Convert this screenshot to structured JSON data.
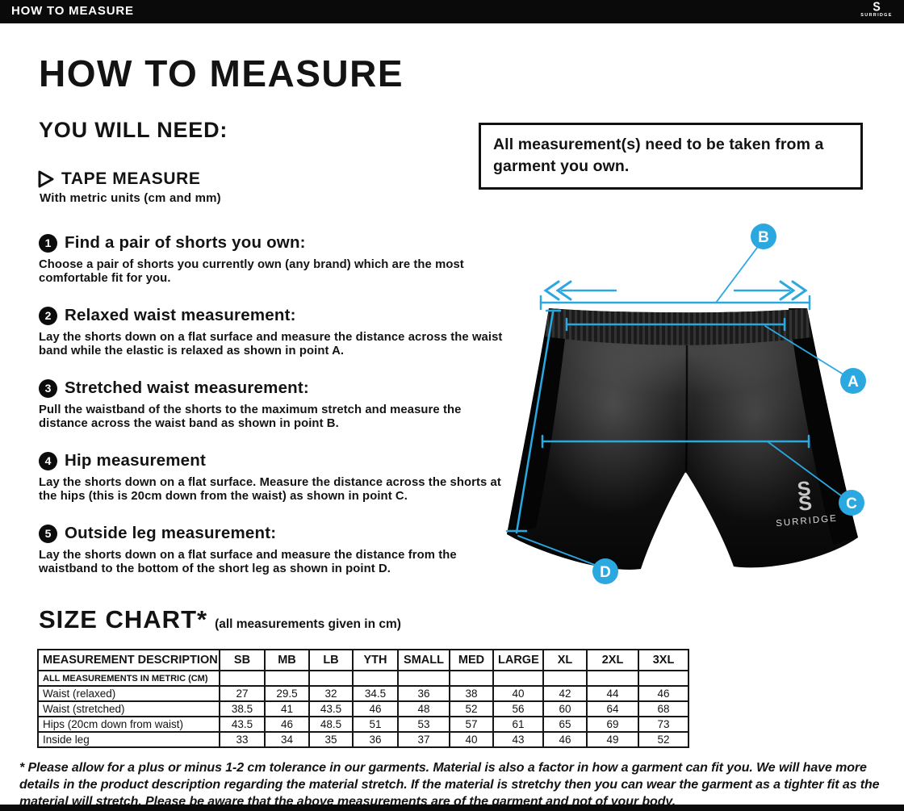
{
  "topbar": {
    "title": "HOW TO MEASURE",
    "brand_mark": "S",
    "brand": "SURRIDGE"
  },
  "intro": {
    "title": "HOW TO MEASURE",
    "you_will_need": "YOU WILL NEED:",
    "tool_name": "TAPE MEASURE",
    "tool_detail": "With metric units (cm and mm)",
    "notice": "All measurement(s) need to be taken from a garment you own."
  },
  "steps": [
    {
      "num": "1",
      "title": "Find a pair of shorts you own:",
      "body": "Choose a pair of shorts you currently own (any brand) which are the most comfortable fit for you."
    },
    {
      "num": "2",
      "title": "Relaxed waist measurement:",
      "body": "Lay the shorts down on a flat surface and measure the distance across the waist band while the elastic is relaxed as shown in point A."
    },
    {
      "num": "3",
      "title": "Stretched waist measurement:",
      "body": "Pull the waistband of the shorts to the maximum stretch and measure the distance across the waist band as shown in point B."
    },
    {
      "num": "4",
      "title": "Hip measurement",
      "body": "Lay the shorts down on a flat surface. Measure the distance across the shorts at the hips (this is 20cm down from the waist)  as shown in point C."
    },
    {
      "num": "5",
      "title": "Outside leg measurement:",
      "body": "Lay the shorts down on a flat surface and measure the distance from the waistband to the bottom of the short leg as shown in point D."
    }
  ],
  "diagram": {
    "point_a": "A",
    "point_b": "B",
    "point_c": "C",
    "point_d": "D",
    "garment_brand_mark": "S",
    "garment_brand": "SURRIDGE",
    "accent_color": "#2ca8e0"
  },
  "size_chart": {
    "title": "SIZE CHART*",
    "subtitle": "(all measurements given in cm)",
    "columns": [
      "MEASUREMENT DESCRIPTION",
      "SB",
      "MB",
      "LB",
      "YTH",
      "SMALL",
      "MED",
      "LARGE",
      "XL",
      "2XL",
      "3XL"
    ],
    "metric_note": "ALL MEASUREMENTS IN METRIC (CM)",
    "rows": [
      {
        "label": "Waist (relaxed)",
        "values": [
          "27",
          "29.5",
          "32",
          "34.5",
          "36",
          "38",
          "40",
          "42",
          "44",
          "46"
        ]
      },
      {
        "label": "Waist (stretched)",
        "values": [
          "38.5",
          "41",
          "43.5",
          "46",
          "48",
          "52",
          "56",
          "60",
          "64",
          "68"
        ]
      },
      {
        "label": "Hips (20cm down from waist)",
        "values": [
          "43.5",
          "46",
          "48.5",
          "51",
          "53",
          "57",
          "61",
          "65",
          "69",
          "73"
        ]
      },
      {
        "label": "Inside leg",
        "values": [
          "33",
          "34",
          "35",
          "36",
          "37",
          "40",
          "43",
          "46",
          "49",
          "52"
        ]
      }
    ]
  },
  "footnote": "* Please allow for a plus or minus 1-2 cm tolerance in our garments. Material is also a factor in how a garment can fit you. We will have more details in the product description regarding the material stretch.  If the material is stretchy then you can wear the garment as a tighter fit as the material will stretch.  Please be aware that the above measurements are of the garment and not of your body."
}
